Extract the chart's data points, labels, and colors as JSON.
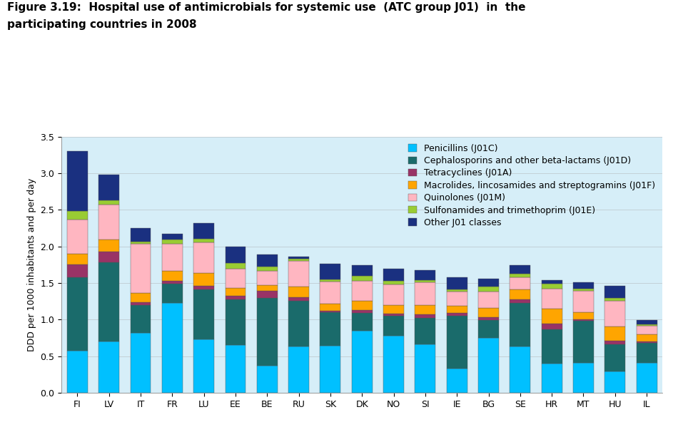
{
  "countries": [
    "FI",
    "LV",
    "IT",
    "FR",
    "LU",
    "EE",
    "BE",
    "RU",
    "SK",
    "DK",
    "NO",
    "SI",
    "IE",
    "BG",
    "SE",
    "HR",
    "MT",
    "HU",
    "IL"
  ],
  "title_line1": "Figure 3.19:  Hospital use of antimicrobials for systemic use  (ATC group J01)  in  the",
  "title_line2": "participating countries in 2008",
  "ylabel": "DDD per 1000 inhabitants and per day",
  "ylim": [
    0,
    3.5
  ],
  "yticks": [
    0.0,
    0.5,
    1.0,
    1.5,
    2.0,
    2.5,
    3.0,
    3.5
  ],
  "series": {
    "Penicillins (J01C)": {
      "color": "#00C0FF",
      "values": [
        0.58,
        0.7,
        0.82,
        1.23,
        0.73,
        0.65,
        0.37,
        0.63,
        0.64,
        0.85,
        0.78,
        0.66,
        0.33,
        0.75,
        0.63,
        0.4,
        0.41,
        0.29,
        0.41
      ]
    },
    "Cephalosporins and other beta-lactams (J01D)": {
      "color": "#1A6B6B",
      "values": [
        1.0,
        1.08,
        0.38,
        0.26,
        0.68,
        0.63,
        0.93,
        0.63,
        0.46,
        0.24,
        0.27,
        0.36,
        0.72,
        0.24,
        0.6,
        0.47,
        0.57,
        0.37,
        0.27
      ]
    },
    "Tetracyclines (J01A)": {
      "color": "#993366",
      "values": [
        0.17,
        0.15,
        0.04,
        0.04,
        0.05,
        0.05,
        0.09,
        0.05,
        0.02,
        0.04,
        0.03,
        0.05,
        0.04,
        0.04,
        0.05,
        0.08,
        0.02,
        0.05,
        0.02
      ]
    },
    "Macrolides, lincosamides and streptogramins (J01F)": {
      "color": "#FFA500",
      "values": [
        0.15,
        0.16,
        0.12,
        0.14,
        0.18,
        0.1,
        0.08,
        0.14,
        0.1,
        0.13,
        0.12,
        0.13,
        0.1,
        0.13,
        0.13,
        0.2,
        0.1,
        0.2,
        0.1
      ]
    },
    "Quinolones (J01M)": {
      "color": "#FFB6C1",
      "values": [
        0.47,
        0.48,
        0.68,
        0.37,
        0.42,
        0.27,
        0.2,
        0.35,
        0.3,
        0.27,
        0.28,
        0.31,
        0.19,
        0.22,
        0.17,
        0.27,
        0.29,
        0.35,
        0.12
      ]
    },
    "Sulfonamides and trimethoprim (J01E)": {
      "color": "#99CC33",
      "values": [
        0.11,
        0.06,
        0.03,
        0.05,
        0.04,
        0.07,
        0.05,
        0.03,
        0.03,
        0.07,
        0.05,
        0.03,
        0.03,
        0.07,
        0.05,
        0.07,
        0.03,
        0.04,
        0.02
      ]
    },
    "Other J01 classes": {
      "color": "#1A3080",
      "values": [
        0.82,
        0.35,
        0.18,
        0.08,
        0.22,
        0.23,
        0.17,
        0.03,
        0.21,
        0.14,
        0.17,
        0.14,
        0.17,
        0.11,
        0.11,
        0.05,
        0.09,
        0.16,
        0.05
      ]
    }
  },
  "plot_background_color": "#D6EEF8",
  "figure_background_color": "#FFFFFF",
  "bar_width": 0.65,
  "legend_fontsize": 9,
  "axis_fontsize": 9,
  "ylabel_fontsize": 9,
  "title_fontsize": 11,
  "grid_color": "#AAAAAA",
  "grid_alpha": 0.5
}
